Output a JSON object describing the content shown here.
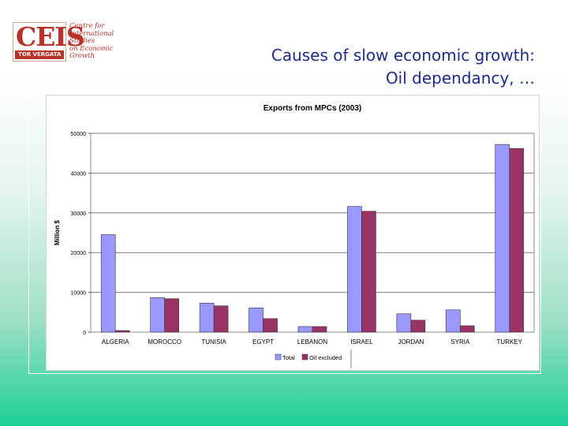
{
  "logo": {
    "letters": "CEIS",
    "band": "TOR VERGATA",
    "text_lines": [
      "Centre for",
      "International",
      "Studies",
      "on Economic",
      "Growth"
    ]
  },
  "slide": {
    "title_line1": "Causes of slow economic growth:",
    "title_line2": "Oil dependancy, …"
  },
  "colors": {
    "total": "#9999ff",
    "oil_excluded": "#993366",
    "grid": "#7f7f7f"
  },
  "chart_data": {
    "type": "bar",
    "title": "Exports from MPCs (2003)",
    "xlabel": "",
    "ylabel": "Million $",
    "ylim": [
      0,
      50000
    ],
    "yticks": [
      0,
      10000,
      20000,
      30000,
      40000,
      50000
    ],
    "categories": [
      "ALGERIA",
      "MOROCCO",
      "TUNISIA",
      "EGYPT",
      "LEBANON",
      "ISRAEL",
      "JORDAN",
      "SYRIA",
      "TURKEY"
    ],
    "series": [
      {
        "name": "Total",
        "values": [
          24500,
          8700,
          7300,
          6100,
          1400,
          31600,
          4600,
          5600,
          47200
        ]
      },
      {
        "name": "Oil excluded",
        "values": [
          400,
          8400,
          6600,
          3400,
          1400,
          30400,
          3000,
          1600,
          46200
        ]
      }
    ],
    "legend": "bottom",
    "grid": true
  }
}
